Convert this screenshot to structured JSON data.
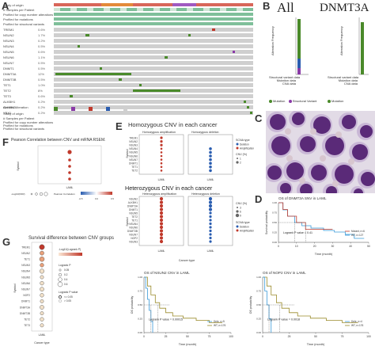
{
  "figure": {
    "panel_letters": [
      "A",
      "B",
      "C",
      "D",
      "E",
      "F",
      "G"
    ],
    "A": {
      "top_labels": [
        "Study of origin",
        "# Samples per Patient",
        "Profiled for copy number alterations",
        "Profiled for mutations",
        "Profiled for structural variants"
      ],
      "gene_rows": [
        "TREM1",
        "NSUN2",
        "NSUN3",
        "NSUN4",
        "NSUN5",
        "NSUN6",
        "NSUN7",
        "DNMT1",
        "DNMT3A",
        "DNMT3B",
        "TET1",
        "TET2",
        "TET3",
        "ALKBH1",
        "ALKBH2",
        "YBX1"
      ],
      "gene_pcts": [
        "0.6%",
        "1.7%",
        "0.2%",
        "0.5%",
        "0.6%",
        "1.1%",
        "0.5%",
        "0.5%",
        "12%",
        "0.5%",
        "1.0%",
        "8%",
        "0.6%",
        "0.2%",
        "0.2%",
        "0.2%"
      ],
      "legend_labels": [
        "Genetic Alteration",
        "Study of origin",
        "# Samples per Patient",
        "Profiled for copy number alterations",
        "Profiled for mutations",
        "Profiled for structural variants"
      ]
    },
    "B": {
      "titles": [
        "All",
        "DNMT3A"
      ],
      "ylabel": "Alteration Frequency",
      "cats": [
        "Structural variant data",
        "Mutation data",
        "CNA data"
      ],
      "legend": [
        "Mutation",
        "Structural Variant",
        "Amplification",
        "Deep Deletion",
        "Multiple Alterations"
      ]
    },
    "E": {
      "title_homo": "Homozygous CNV in each cancer",
      "title_hetero": "Heterozygous CNV in each cancer",
      "sub_amp_homo": "Homozygous amplification",
      "sub_del_homo": "Homozygous deletion",
      "sub_amp_het": "Heterozygous amplification",
      "sub_del_het": "Heterozygous deletion",
      "genes_homo": [
        "TREM1",
        "NSUN2",
        "NSUN3",
        "NSUN4",
        "NSUN5",
        "NSUN6",
        "NSUN7",
        "DNMT1",
        "TET1",
        "TET2"
      ],
      "genes_het": [
        "NSUN2",
        "ALKBH1",
        "DNMT3A",
        "DNMT1",
        "NSUN5",
        "TET2",
        "TET1",
        "NSUN4",
        "NSUN6",
        "DNMT3B",
        "NSUN7",
        "NOP2",
        "NSUN3"
      ],
      "xcat": "LAML",
      "xlabel": "Cancer type",
      "ylabel": "Symbol",
      "legend_scna_title": "SCNA type",
      "legend_scna": [
        "Deletion",
        "Amplification"
      ],
      "legend_cnv_title": "CNV (%)",
      "legend_cnv_homo": [
        "1",
        "2"
      ],
      "legend_cnv_het": [
        "3",
        "6",
        "9"
      ]
    },
    "F": {
      "title": "Pearson Correlation between CNV and mRNA RSEM.",
      "ylabel": "Symbol",
      "legend_fdr": "-Log10(FDR)",
      "legend_corr": "Pearson Correlation",
      "corr_ticks": [
        "-0.5",
        "0.0",
        "0.5"
      ],
      "xcat": "LAML"
    },
    "G": {
      "title": "Survival difference between CNV groups",
      "genes": [
        "TREM1",
        "NSUN2",
        "TET1",
        "NSUN3",
        "NSUN4",
        "NSUN5",
        "NSUN6",
        "NSUN7",
        "NOP2",
        "DNMT1",
        "DNMT3A",
        "DNMT3B",
        "TET2",
        "TET3"
      ],
      "legend_logp": "-Log10(Logrank P)",
      "legend_p_title": "Logrank P",
      "legend_p": [
        "0.05",
        "0.2",
        "0.4",
        "0.6"
      ],
      "legend_pval_title": "Logrank P value",
      "legend_pval": [
        "<= 0.05",
        ">  0.05"
      ],
      "xcat": "LAML",
      "xlabel": "Cancer type",
      "ylabel": "Symbol"
    },
    "D": {
      "title": "OS of DNMT3A SNV in LAML",
      "logrank": "Logrank P value = 0.41",
      "legend": [
        "Mutant, n=6",
        "WT, n=127"
      ],
      "xlabel": "Time (month)",
      "ylabel": "Survival probability",
      "xticks": [
        "0",
        "10",
        "20",
        "30",
        "40",
        "50"
      ]
    },
    "H1": {
      "title": "OS of NSUN2 CNV in LAML",
      "logrank": "Logrank P value = 0.00015",
      "legend": [
        "Dele, n=5",
        "WT, n=176"
      ],
      "xlabel": "Time (month)",
      "ylabel": "OS probability",
      "xticks": [
        "0",
        "25",
        "50",
        "75",
        "100"
      ]
    },
    "H2": {
      "title": "OS of NOP2 CNV in LAML",
      "logrank": "Logrank P value = 0.0018",
      "legend": [
        "Dele, n=4",
        "WT, n=176"
      ],
      "xlabel": "Time (month)",
      "ylabel": "OS probability",
      "xticks": [
        "0",
        "25",
        "50",
        "75",
        "100"
      ]
    },
    "colors": {
      "blue": "#2a5db0",
      "red": "#c0392b",
      "green": "#4a8a2a",
      "olive": "#a79a3a",
      "purple": "#8a3aa7",
      "grey": "#cfcfcf"
    }
  }
}
